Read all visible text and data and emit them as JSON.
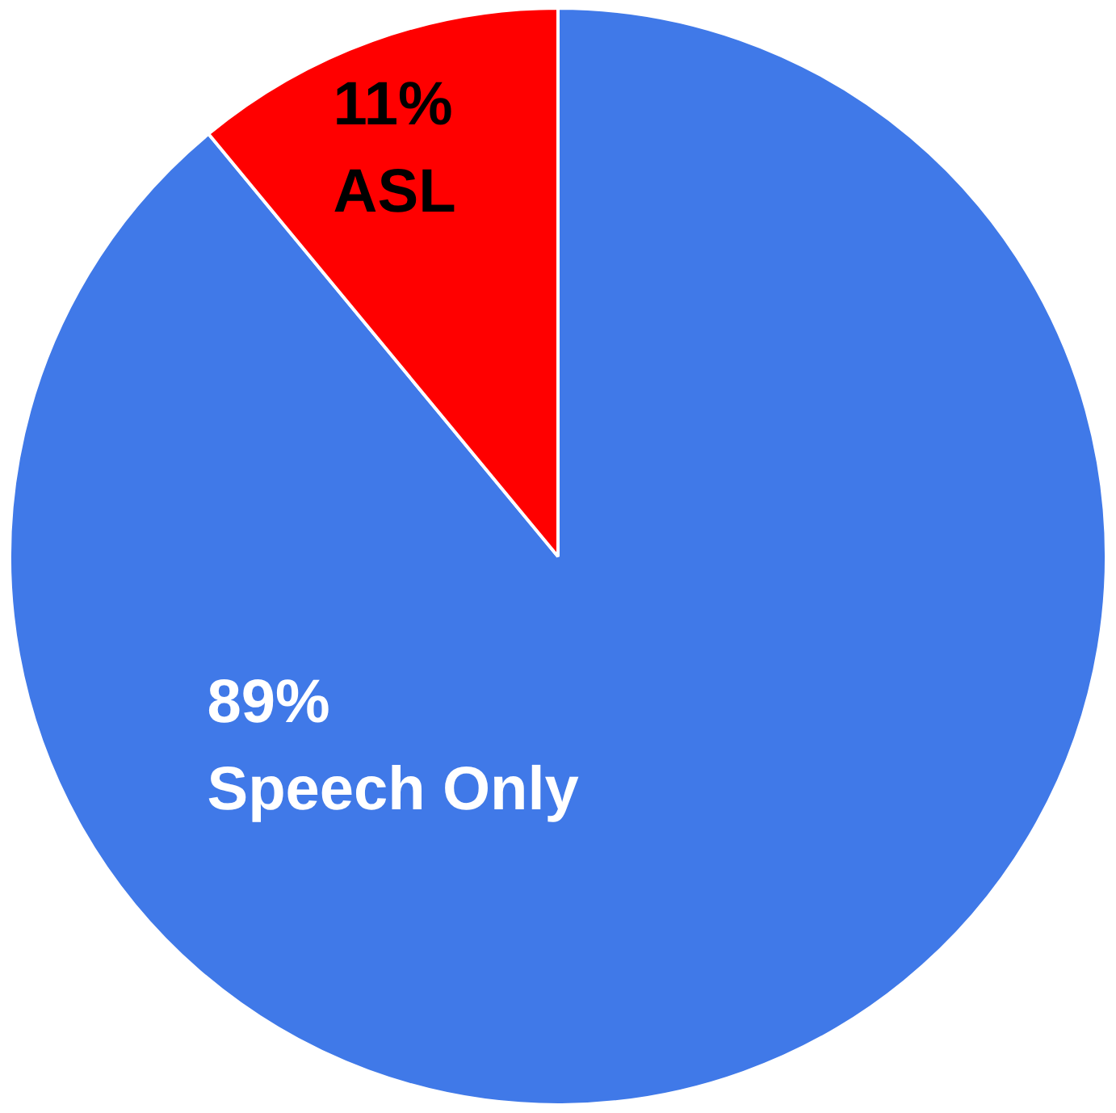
{
  "chart_data": {
    "type": "pie",
    "categories": [
      "Speech Only",
      "ASL"
    ],
    "values": [
      89,
      11
    ],
    "colors": [
      "#4079e8",
      "#ff0000"
    ],
    "value_labels": [
      "89%",
      "11%"
    ],
    "legend": false
  }
}
